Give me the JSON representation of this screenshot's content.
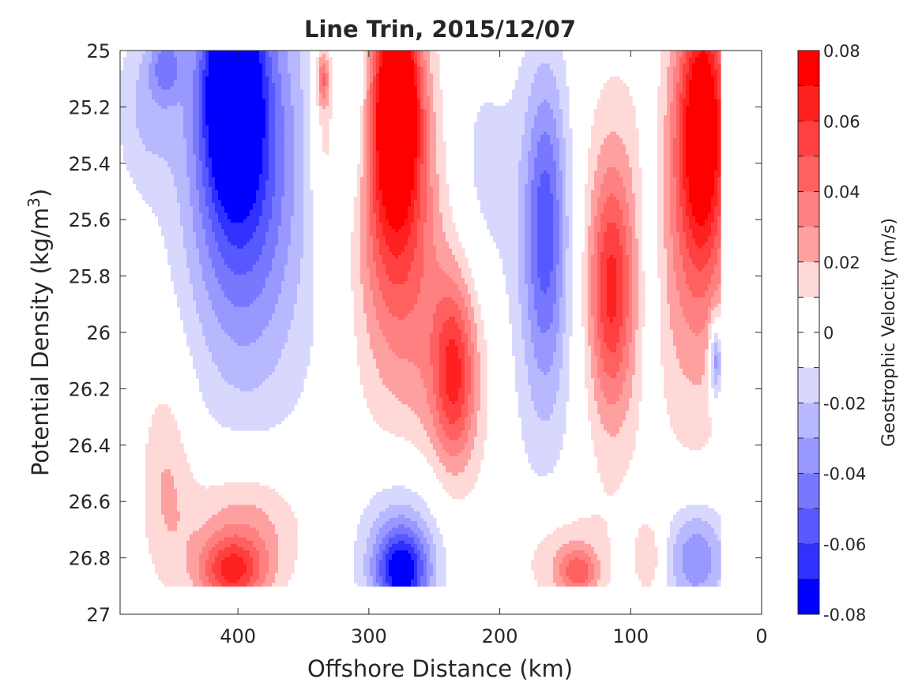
{
  "chart_data": {
    "type": "contour",
    "title": "Line Trin, 2015/12/07",
    "xlabel": "Offshore Distance (km)",
    "ylabel_main": "Potential Density (kg/m",
    "ylabel_sup": "3",
    "ylabel_close": ")",
    "colorbar_label": "Geostrophic Velocity (m/s)",
    "x_axis": {
      "min": 0,
      "max": 490,
      "reversed": true,
      "ticks": [
        400,
        300,
        200,
        100,
        0
      ],
      "tick_labels": [
        "400",
        "300",
        "200",
        "100",
        "0"
      ]
    },
    "y_axis": {
      "min": 25,
      "max": 27,
      "reversed": true,
      "ticks": [
        25,
        25.2,
        25.4,
        25.6,
        25.8,
        26,
        26.2,
        26.4,
        26.6,
        26.8,
        27
      ],
      "tick_labels": [
        "25",
        "25.2",
        "25.4",
        "25.6",
        "25.8",
        "26",
        "26.2",
        "26.4",
        "26.6",
        "26.8",
        "27"
      ]
    },
    "colorbar": {
      "min": -0.08,
      "max": 0.08,
      "ticks": [
        0.08,
        0.06,
        0.04,
        0.02,
        0,
        -0.02,
        -0.04,
        -0.06,
        -0.08
      ],
      "tick_labels": [
        "0.08",
        "0.06",
        "0.04",
        "0.02",
        "0",
        "-0.02",
        "-0.04",
        "-0.06",
        "-0.08"
      ],
      "levels": [
        {
          "lo": 0.07,
          "hi": 0.08,
          "color": "#ff0000"
        },
        {
          "lo": 0.06,
          "hi": 0.07,
          "color": "#ff2020"
        },
        {
          "lo": 0.05,
          "hi": 0.06,
          "color": "#ff4040"
        },
        {
          "lo": 0.04,
          "hi": 0.05,
          "color": "#ff6060"
        },
        {
          "lo": 0.03,
          "hi": 0.04,
          "color": "#ff8080"
        },
        {
          "lo": 0.02,
          "hi": 0.03,
          "color": "#ffa0a0"
        },
        {
          "lo": 0.01,
          "hi": 0.02,
          "color": "#ffd8d8"
        },
        {
          "lo": 0.0,
          "hi": 0.01,
          "color": "#ffffff"
        },
        {
          "lo": -0.01,
          "hi": 0.0,
          "color": "#ffffff"
        },
        {
          "lo": -0.02,
          "hi": -0.01,
          "color": "#d8d8ff"
        },
        {
          "lo": -0.03,
          "hi": -0.02,
          "color": "#b8b8ff"
        },
        {
          "lo": -0.04,
          "hi": -0.03,
          "color": "#9898ff"
        },
        {
          "lo": -0.05,
          "hi": -0.04,
          "color": "#7878ff"
        },
        {
          "lo": -0.06,
          "hi": -0.05,
          "color": "#5858ff"
        },
        {
          "lo": -0.07,
          "hi": -0.06,
          "color": "#3030ff"
        },
        {
          "lo": -0.08,
          "hi": -0.07,
          "color": "#0000ff"
        }
      ]
    },
    "features": [
      {
        "x": 470,
        "y": 25.2,
        "rx": 24,
        "ry": 0.3,
        "v": -0.02
      },
      {
        "x": 455,
        "y": 25.05,
        "rx": 12,
        "ry": 0.12,
        "v": -0.03
      },
      {
        "x": 455,
        "y": 26.5,
        "rx": 20,
        "ry": 0.4,
        "v": 0.02
      },
      {
        "x": 390,
        "y": 25.5,
        "rx": 55,
        "ry": 0.9,
        "v": -0.03
      },
      {
        "x": 400,
        "y": 25.3,
        "rx": 35,
        "ry": 0.6,
        "v": -0.045
      },
      {
        "x": 405,
        "y": 25.1,
        "rx": 20,
        "ry": 0.35,
        "v": -0.065
      },
      {
        "x": 395,
        "y": 26.7,
        "rx": 45,
        "ry": 0.25,
        "v": 0.03
      },
      {
        "x": 405,
        "y": 26.85,
        "rx": 25,
        "ry": 0.12,
        "v": 0.05
      },
      {
        "x": 335,
        "y": 25.3,
        "rx": 10,
        "ry": 0.4,
        "v": 0.02
      },
      {
        "x": 335,
        "y": 25.1,
        "rx": 5,
        "ry": 0.1,
        "v": 0.035
      },
      {
        "x": 310,
        "y": 25.2,
        "rx": 9,
        "ry": 0.35,
        "v": -0.02
      },
      {
        "x": 280,
        "y": 25.7,
        "rx": 35,
        "ry": 0.8,
        "v": 0.025
      },
      {
        "x": 280,
        "y": 25.4,
        "rx": 25,
        "ry": 0.5,
        "v": 0.05
      },
      {
        "x": 278,
        "y": 25.15,
        "rx": 15,
        "ry": 0.3,
        "v": 0.075
      },
      {
        "x": 275,
        "y": 26.75,
        "rx": 35,
        "ry": 0.3,
        "v": -0.03
      },
      {
        "x": 275,
        "y": 26.85,
        "rx": 20,
        "ry": 0.15,
        "v": -0.06
      },
      {
        "x": 235,
        "y": 26.1,
        "rx": 30,
        "ry": 0.5,
        "v": 0.025
      },
      {
        "x": 235,
        "y": 26.15,
        "rx": 15,
        "ry": 0.3,
        "v": 0.04
      },
      {
        "x": 215,
        "y": 25.5,
        "rx": 25,
        "ry": 0.5,
        "v": -0.015
      },
      {
        "x": 165,
        "y": 25.8,
        "rx": 28,
        "ry": 0.8,
        "v": -0.025
      },
      {
        "x": 165,
        "y": 25.6,
        "rx": 15,
        "ry": 0.5,
        "v": -0.035
      },
      {
        "x": 155,
        "y": 26.8,
        "rx": 35,
        "ry": 0.2,
        "v": 0.02
      },
      {
        "x": 140,
        "y": 26.85,
        "rx": 15,
        "ry": 0.08,
        "v": 0.035
      },
      {
        "x": 115,
        "y": 25.8,
        "rx": 30,
        "ry": 0.7,
        "v": 0.025
      },
      {
        "x": 115,
        "y": 25.85,
        "rx": 15,
        "ry": 0.4,
        "v": 0.04
      },
      {
        "x": 85,
        "y": 25.7,
        "rx": 10,
        "ry": 0.6,
        "v": -0.015
      },
      {
        "x": 85,
        "y": 26.8,
        "rx": 12,
        "ry": 0.15,
        "v": 0.02
      },
      {
        "x": 50,
        "y": 25.6,
        "rx": 30,
        "ry": 0.75,
        "v": 0.035
      },
      {
        "x": 45,
        "y": 25.25,
        "rx": 18,
        "ry": 0.45,
        "v": 0.07
      },
      {
        "x": 50,
        "y": 26.8,
        "rx": 25,
        "ry": 0.2,
        "v": -0.04
      },
      {
        "x": 35,
        "y": 26.1,
        "rx": 5,
        "ry": 0.15,
        "v": -0.05
      }
    ]
  }
}
